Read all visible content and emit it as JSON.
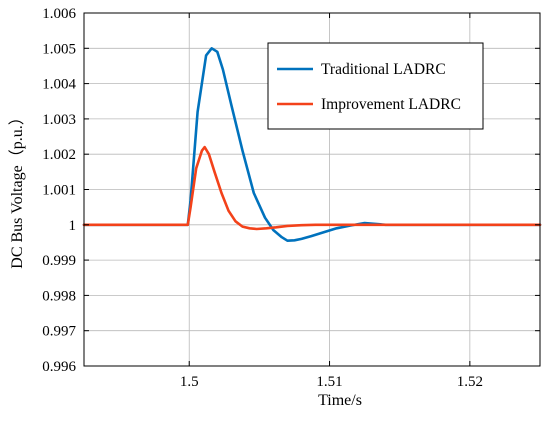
{
  "chart_data": {
    "type": "line",
    "xlabel": "Time/s",
    "ylabel": "DC Bus Voltage（p.u.）",
    "xlim": [
      1.4925,
      1.525
    ],
    "ylim": [
      0.996,
      1.006
    ],
    "x_ticks": [
      1.5,
      1.51,
      1.52
    ],
    "x_tick_labels": [
      "1.5",
      "1.51",
      "1.52"
    ],
    "y_ticks": [
      0.996,
      0.997,
      0.998,
      0.999,
      1.0,
      1.001,
      1.002,
      1.003,
      1.004,
      1.005,
      1.006
    ],
    "y_tick_labels": [
      "0.996",
      "0.997",
      "0.998",
      "0.999",
      "1",
      "1.001",
      "1.002",
      "1.003",
      "1.004",
      "1.005",
      "1.006"
    ],
    "grid": true,
    "legend_position": "top-right",
    "series": [
      {
        "name": "Traditional LADRC",
        "color": "#0072BD",
        "x": [
          1.4925,
          1.4999,
          1.5001,
          1.5006,
          1.5012,
          1.5016,
          1.502,
          1.5024,
          1.503,
          1.5038,
          1.5046,
          1.5054,
          1.506,
          1.5066,
          1.507,
          1.5075,
          1.508,
          1.5087,
          1.5095,
          1.5105,
          1.5115,
          1.5125,
          1.514,
          1.525
        ],
        "y": [
          1.0,
          1.0,
          1.0007,
          1.0032,
          1.0048,
          1.005,
          1.0049,
          1.0044,
          1.0034,
          1.0021,
          1.0009,
          1.0002,
          0.99985,
          0.99965,
          0.99955,
          0.99956,
          0.9996,
          0.99968,
          0.99978,
          0.9999,
          0.99998,
          1.00005,
          1.0,
          1.0
        ]
      },
      {
        "name": "Improvement LADRC",
        "color": "#F3421A",
        "x": [
          1.4925,
          1.4999,
          1.5001,
          1.5005,
          1.5009,
          1.5011,
          1.5014,
          1.5018,
          1.5023,
          1.5028,
          1.5033,
          1.5038,
          1.5043,
          1.5048,
          1.5055,
          1.5062,
          1.507,
          1.508,
          1.509,
          1.525
        ],
        "y": [
          1.0,
          1.0,
          1.0005,
          1.0016,
          1.0021,
          1.0022,
          1.002,
          1.0015,
          1.0009,
          1.0004,
          1.0001,
          0.99995,
          0.9999,
          0.99988,
          0.9999,
          0.99993,
          0.99997,
          0.99999,
          1.0,
          1.0
        ]
      }
    ]
  }
}
